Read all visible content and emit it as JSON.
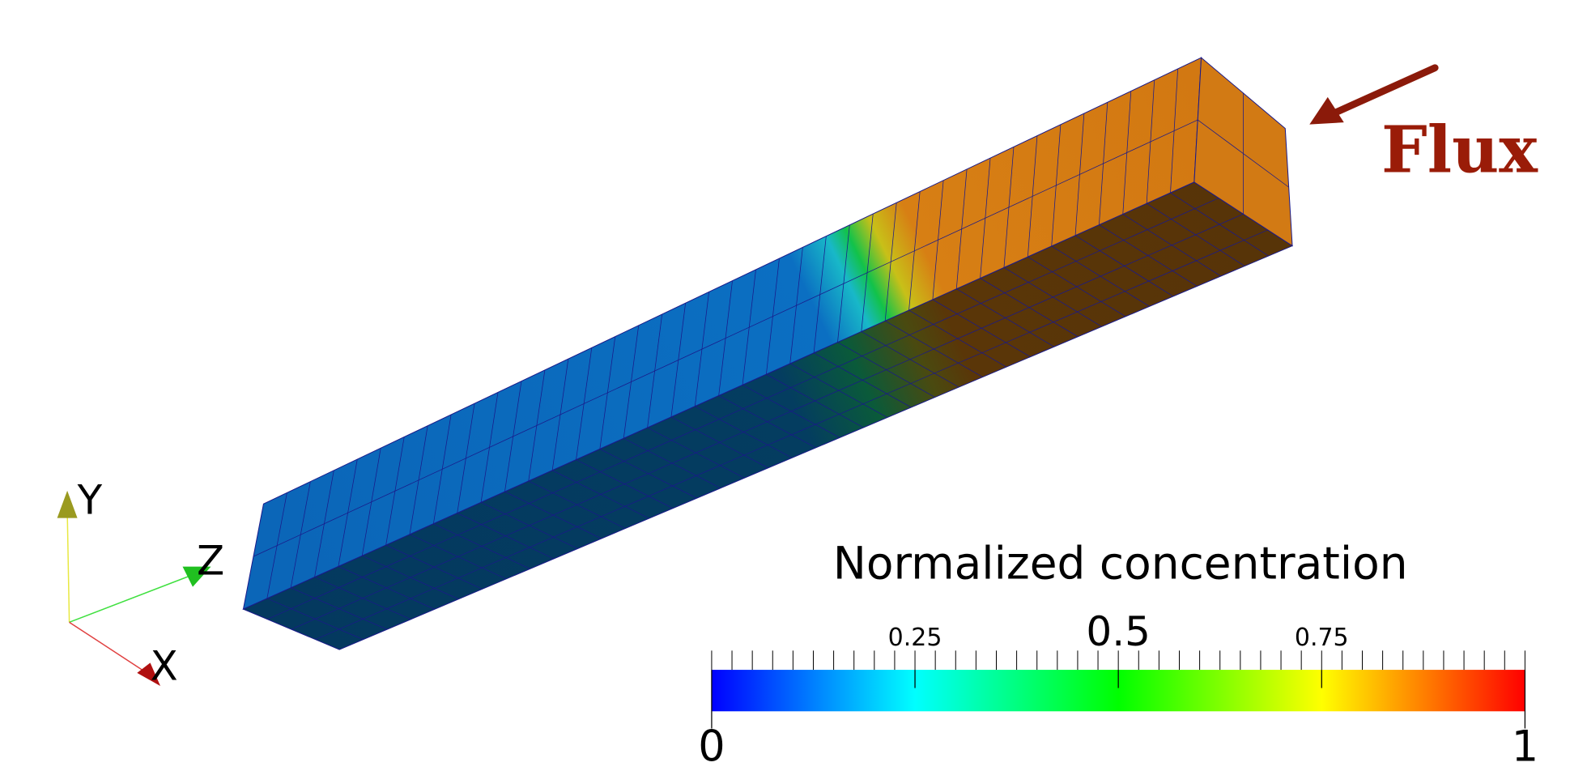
{
  "triad": {
    "x": "X",
    "y": "Y",
    "z": "Z"
  },
  "annotation": "Flux",
  "colorbar": {
    "title": "Normalized concentration",
    "range": [
      0,
      1
    ],
    "ticks": [
      0,
      0.25,
      0.5,
      0.75,
      1
    ]
  }
}
